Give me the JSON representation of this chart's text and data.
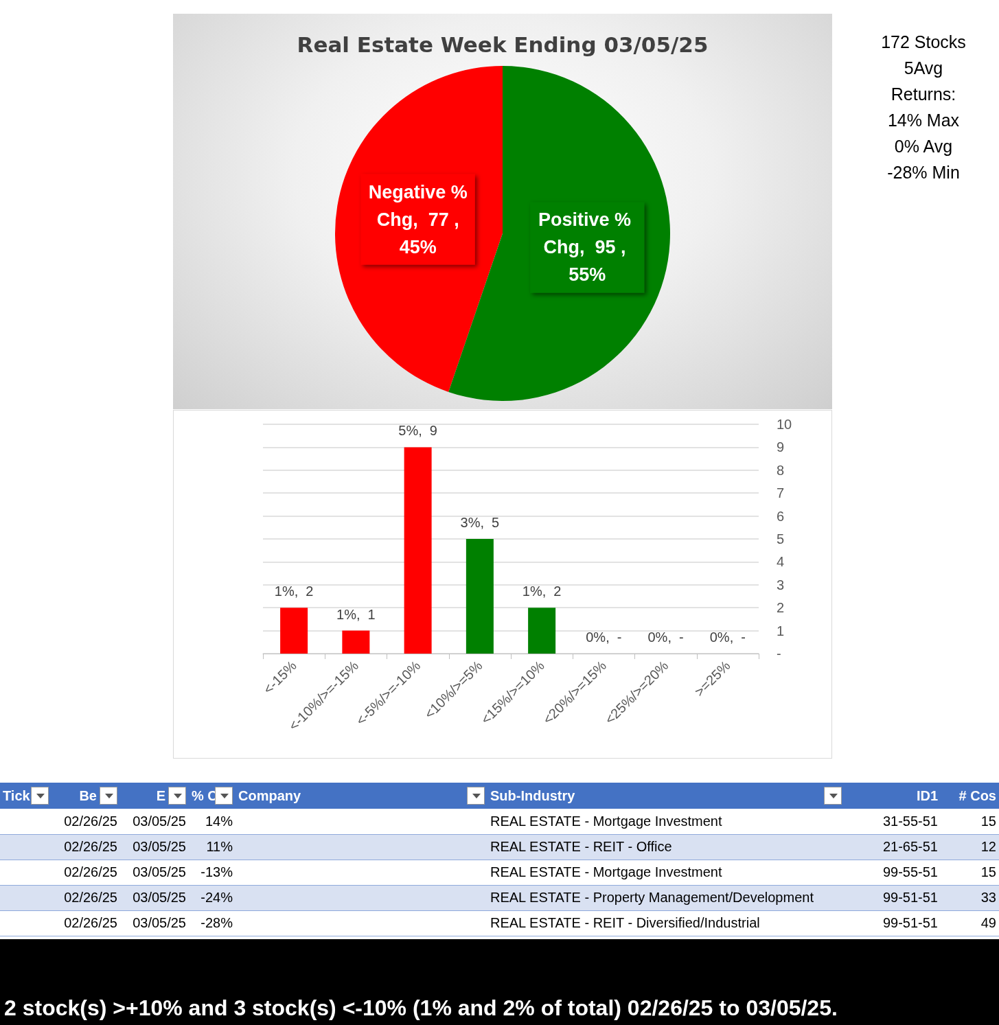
{
  "chart_data": [
    {
      "type": "pie",
      "title": "Real Estate Week Ending 03/05/25",
      "categories": [
        "Negative % Chg",
        "Positive % Chg"
      ],
      "values": [
        77,
        95
      ],
      "colors": [
        "#ff0000",
        "#008000"
      ],
      "value_labels": [
        "77 , 45%",
        "95 , 55%"
      ],
      "annotations": [
        "172 Stocks",
        "5Avg",
        "Returns:",
        "14% Max",
        "0% Avg",
        "-28% Min"
      ]
    },
    {
      "type": "bar",
      "categories": [
        "<-15%",
        "<-10%/>=-15%",
        "<-5%/>=-10%",
        "<10%/>=5%",
        "<15%/>=10%",
        "<20%/>=15%",
        "<25%/>=20%",
        ">=25%"
      ],
      "values": [
        2,
        1,
        9,
        5,
        2,
        0,
        0,
        0
      ],
      "colors": [
        "#ff0000",
        "#ff0000",
        "#ff0000",
        "#008000",
        "#008000",
        "#008000",
        "#008000",
        "#008000"
      ],
      "value_labels": [
        "1%,  2",
        "1%,  1",
        "5%,  9",
        "3%,  5",
        "1%,  2",
        "0%,  -",
        "0%,  -",
        "0%,  -"
      ],
      "ylim": [
        0,
        10
      ],
      "yticks": [
        {
          "value": 0,
          "label": "-"
        },
        1,
        2,
        3,
        4,
        5,
        6,
        7,
        8,
        9,
        10
      ],
      "grid": "y"
    },
    {
      "type": "other",
      "categories": [
        "Tick",
        "Be",
        "E",
        "% C",
        "Company",
        "Sub-Industry",
        "ID1",
        "# Cos"
      ],
      "cell_labels": [
        [
          null,
          "02/26/25",
          "03/05/25",
          "14%",
          null,
          "REAL ESTATE - Mortgage Investment",
          "31-55-51",
          "15"
        ],
        [
          null,
          "02/26/25",
          "03/05/25",
          "11%",
          null,
          "REAL ESTATE - REIT - Office",
          "21-65-51",
          "12"
        ],
        [
          null,
          "02/26/25",
          "03/05/25",
          "-13%",
          null,
          "REAL ESTATE - Mortgage Investment",
          "99-55-51",
          "15"
        ],
        [
          null,
          "02/26/25",
          "03/05/25",
          "-24%",
          null,
          "REAL ESTATE - Property Management/Development",
          "99-51-51",
          "33"
        ],
        [
          null,
          "02/26/25",
          "03/05/25",
          "-28%",
          null,
          "REAL ESTATE - REIT - Diversified/Industrial",
          "99-51-51",
          "49"
        ]
      ],
      "annotations": [
        "2 stock(s) >+10% and 3 stock(s) <-10% (1% and 2% of total) 02/26/25 to 03/05/25."
      ]
    }
  ]
}
